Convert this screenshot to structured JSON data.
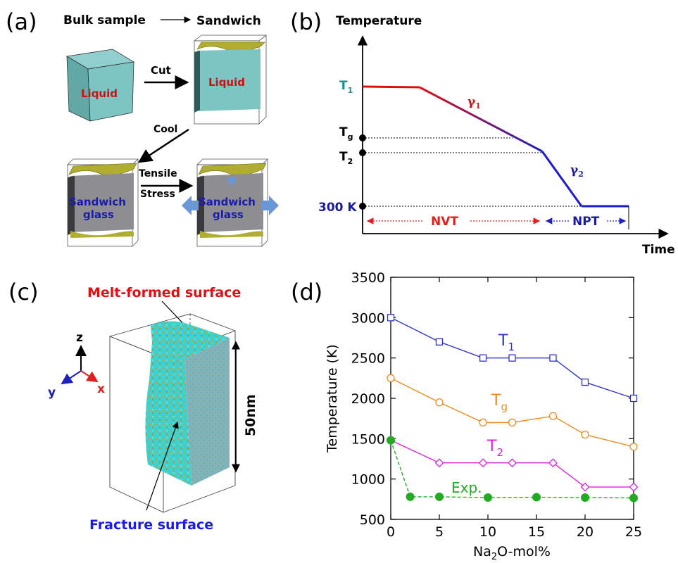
{
  "panels": {
    "a": {
      "letter": "(a)",
      "bulk_label": "Bulk sample",
      "sandwich_label": "Sandwich",
      "liquid_label": "Liquid",
      "cut_label": "Cut",
      "cool_label": "Cool",
      "tensile_label": "Tensile",
      "stress_label": "Stress",
      "sandwich_word": "Sandwich",
      "glass_word": "glass"
    },
    "b": {
      "letter": "(b)",
      "y_title": "Temperature",
      "x_title": "Time",
      "t1_main": "T",
      "t1_sub": "1",
      "tg_main": "T",
      "tg_sub": "g",
      "t2_main": "T",
      "t2_sub": "2",
      "k300": "300 K",
      "gamma1_main": "γ",
      "gamma1_sub": "1",
      "gamma2_main": "γ",
      "gamma2_sub": "2",
      "nvt": "NVT",
      "npt": "NPT"
    },
    "c": {
      "letter": "(c)",
      "melt_label": "Melt-formed surface",
      "fracture_label": "Fracture surface",
      "z_axis": "z",
      "y_axis": "y",
      "x_axis": "x",
      "height_label": "50nm"
    },
    "d": {
      "letter": "(d)",
      "ylabel": "Temperature (K)",
      "xlabel_pre": "Na",
      "xlabel_sub": "2",
      "xlabel_post": "O-mol%"
    }
  },
  "colors": {
    "blue_series": "#3333cc",
    "orange_series": "#ee8a22",
    "magenta_series": "#dd22dd",
    "green_series": "#22aa22",
    "liquid_red": "#cc1111",
    "glass_blue": "#1a1aaa",
    "teal_label": "#1a8f8f"
  },
  "chart_data": {
    "type": "line",
    "xlabel": "Na2O-mol%",
    "ylabel": "Temperature (K)",
    "xlim": [
      0,
      25
    ],
    "ylim": [
      500,
      3500
    ],
    "xticks": [
      0,
      5,
      10,
      15,
      20,
      25
    ],
    "yticks": [
      500,
      1000,
      1500,
      2000,
      2500,
      3000,
      3500
    ],
    "grid": false,
    "series": [
      {
        "name": "T1",
        "label_main": "T",
        "label_sub": "1",
        "color": "#3333cc",
        "marker": "square",
        "dashed": false,
        "x": [
          0,
          5,
          9.5,
          12.5,
          16.7,
          20,
          25
        ],
        "y": [
          3000,
          2700,
          2500,
          2500,
          2500,
          2200,
          2000
        ]
      },
      {
        "name": "Tg",
        "label_main": "T",
        "label_sub": "g",
        "color": "#ee8a22",
        "marker": "circle",
        "dashed": false,
        "x": [
          0,
          5,
          9.5,
          12.5,
          16.7,
          20,
          25
        ],
        "y": [
          2250,
          1950,
          1700,
          1700,
          1780,
          1550,
          1400
        ]
      },
      {
        "name": "T2",
        "label_main": "T",
        "label_sub": "2",
        "color": "#dd22dd",
        "marker": "diamond",
        "dashed": false,
        "x": [
          0,
          5,
          9.5,
          12.5,
          16.7,
          20,
          25
        ],
        "y": [
          1480,
          1200,
          1200,
          1200,
          1200,
          900,
          900
        ]
      },
      {
        "name": "Exp.",
        "label_main": "Exp.",
        "label_sub": "",
        "color": "#22aa22",
        "marker": "filled-circle",
        "dashed": true,
        "x": [
          0,
          2,
          5,
          10,
          15,
          20,
          25
        ],
        "y": [
          1480,
          780,
          780,
          770,
          775,
          770,
          765
        ]
      }
    ]
  }
}
